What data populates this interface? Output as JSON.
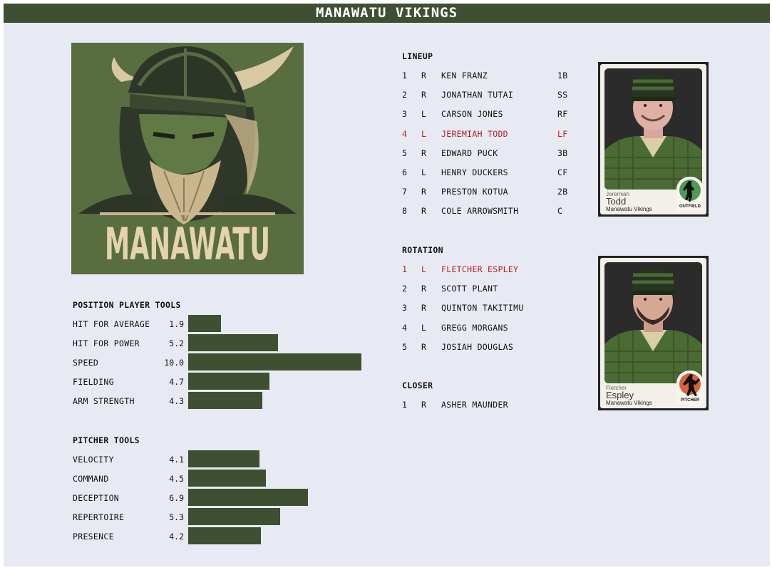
{
  "title": "MANAWATU VIKINGS",
  "logo": {
    "text": "MANAWATU"
  },
  "position_tools": {
    "heading": "POSITION PLAYER TOOLS",
    "items": [
      {
        "label": "HIT FOR AVERAGE",
        "value": "1.9"
      },
      {
        "label": "HIT FOR POWER",
        "value": "5.2"
      },
      {
        "label": "SPEED",
        "value": "10.0"
      },
      {
        "label": "FIELDING",
        "value": "4.7"
      },
      {
        "label": "ARM STRENGTH",
        "value": "4.3"
      }
    ]
  },
  "pitcher_tools": {
    "heading": "PITCHER TOOLS",
    "items": [
      {
        "label": "VELOCITY",
        "value": "4.1"
      },
      {
        "label": "COMMAND",
        "value": "4.5"
      },
      {
        "label": "DECEPTION",
        "value": "6.9"
      },
      {
        "label": "REPERTOIRE",
        "value": "5.3"
      },
      {
        "label": "PRESENCE",
        "value": "4.2"
      }
    ]
  },
  "lineup": {
    "heading": "LINEUP",
    "rows": [
      {
        "num": "1",
        "hand": "R",
        "name": "KEN FRANZ",
        "pos": "1B",
        "highlight": false
      },
      {
        "num": "2",
        "hand": "R",
        "name": "JONATHAN TUTAI",
        "pos": "SS",
        "highlight": false
      },
      {
        "num": "3",
        "hand": "L",
        "name": "CARSON JONES",
        "pos": "RF",
        "highlight": false
      },
      {
        "num": "4",
        "hand": "L",
        "name": "JEREMIAH TODD",
        "pos": "LF",
        "highlight": true
      },
      {
        "num": "5",
        "hand": "R",
        "name": "EDWARD PUCK",
        "pos": "3B",
        "highlight": false
      },
      {
        "num": "6",
        "hand": "L",
        "name": "HENRY DUCKERS",
        "pos": "CF",
        "highlight": false
      },
      {
        "num": "7",
        "hand": "R",
        "name": "PRESTON KOTUA",
        "pos": "2B",
        "highlight": false
      },
      {
        "num": "8",
        "hand": "R",
        "name": "COLE ARROWSMITH",
        "pos": "C",
        "highlight": false
      }
    ]
  },
  "rotation": {
    "heading": "ROTATION",
    "rows": [
      {
        "num": "1",
        "hand": "L",
        "name": "FLETCHER ESPLEY",
        "highlight": true
      },
      {
        "num": "2",
        "hand": "R",
        "name": "SCOTT PLANT",
        "highlight": false
      },
      {
        "num": "3",
        "hand": "R",
        "name": "QUINTON TAKITIMU",
        "highlight": false
      },
      {
        "num": "4",
        "hand": "L",
        "name": "GREGG MORGANS",
        "highlight": false
      },
      {
        "num": "5",
        "hand": "R",
        "name": "JOSIAH DOUGLAS",
        "highlight": false
      }
    ]
  },
  "closer": {
    "heading": "CLOSER",
    "rows": [
      {
        "num": "1",
        "hand": "R",
        "name": "ASHER MAUNDER",
        "highlight": false
      }
    ]
  },
  "cards": {
    "batter": {
      "first": "Jeremiah",
      "last": "Todd",
      "team": "Manawatu Vikings",
      "role": "OUTFIELD",
      "badge_color": "#4e9a5a"
    },
    "pitcher": {
      "first": "Fletcher",
      "last": "Espley",
      "team": "Manawatu Vikings",
      "role": "PITCHER",
      "badge_color": "#d9633a"
    }
  },
  "colors": {
    "bar": "#3f4f31",
    "highlight": "#b81c1c",
    "background": "#e8eaf3"
  },
  "tool_scale_max": 10
}
